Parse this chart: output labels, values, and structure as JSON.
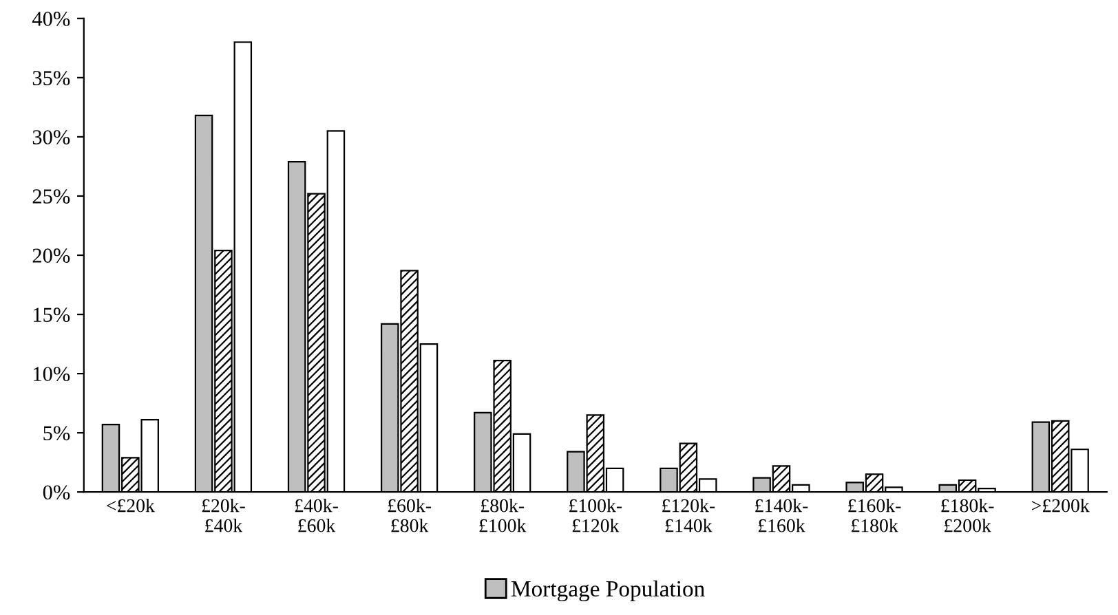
{
  "chart_data": {
    "type": "bar",
    "categories": [
      "<£20k",
      "£20k-\n£40k",
      "£40k-\n£60k",
      "£60k-\n£80k",
      "£80k-\n£100k",
      "£100k-\n£120k",
      "£120k-\n£140k",
      "£140k-\n£160k",
      "£160k-\n£180k",
      "£180k-\n£200k",
      ">£200k"
    ],
    "series": [
      {
        "name": "Mortgage Population",
        "color": "#bfbfbf",
        "values": [
          5.7,
          31.8,
          27.9,
          14.2,
          6.7,
          3.4,
          2.0,
          1.2,
          0.8,
          0.6,
          5.9
        ]
      },
      {
        "color": "#000000",
        "values": [
          2.9,
          20.4,
          25.2,
          18.7,
          11.1,
          6.5,
          4.1,
          2.2,
          1.5,
          1.0,
          6.0
        ]
      },
      {
        "color": "#ffffff",
        "values": [
          6.1,
          38.0,
          30.5,
          12.5,
          4.9,
          2.0,
          1.1,
          0.6,
          0.4,
          0.3,
          3.6
        ]
      }
    ],
    "ylim": [
      0,
      40
    ],
    "yticks": [
      {
        "value": 0,
        "label": "0%"
      },
      {
        "value": 5,
        "label": "5%"
      },
      {
        "value": 10,
        "label": "10%"
      },
      {
        "value": 15,
        "label": "15%"
      },
      {
        "value": 20,
        "label": "20%"
      },
      {
        "value": 25,
        "label": "25%"
      },
      {
        "value": 30,
        "label": "30%"
      },
      {
        "value": 35,
        "label": "35%"
      },
      {
        "value": 40,
        "label": "40%"
      }
    ],
    "grid": false,
    "legend": "bottom"
  }
}
